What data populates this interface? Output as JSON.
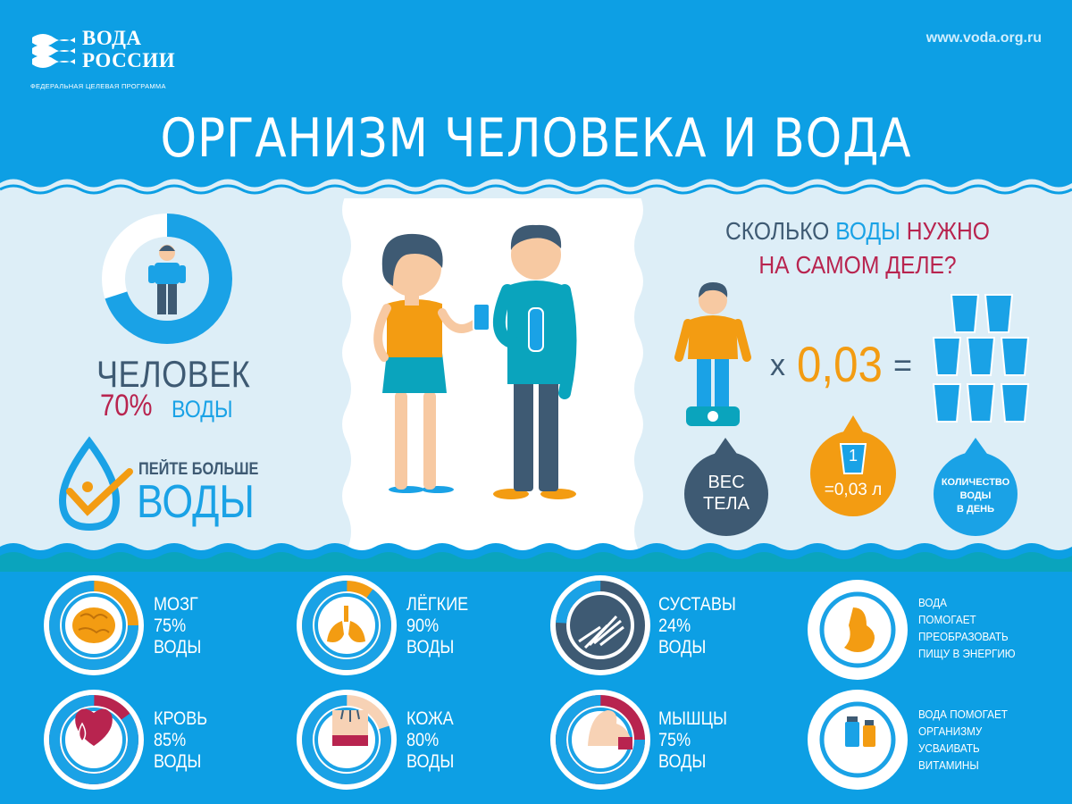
{
  "brand": {
    "name_line1": "ВОДА",
    "name_line2": "РОССИИ",
    "subtitle": "ФЕДЕРАЛЬНАЯ ЦЕЛЕВАЯ ПРОГРАММА",
    "url": "www.voda.org.ru"
  },
  "title": "ОРГАНИЗМ ЧЕЛОВЕКА И ВОДА",
  "human": {
    "label": "ЧЕЛОВЕК",
    "percent": "70%",
    "percent_word": "ВОДЫ",
    "water_fraction": 0.7
  },
  "drink_more": {
    "line1": "ПЕЙТЕ БОЛЬШЕ",
    "line2": "ВОДЫ"
  },
  "calculation": {
    "question_part1": "СКОЛЬКО",
    "question_part2": "ВОДЫ",
    "question_part3": "НУЖНО",
    "question_line2": "НА САМОМ ДЕЛЕ?",
    "multiply": "x",
    "coefficient": "0,03",
    "equals": "=",
    "weight_bubble_line1": "ВЕС",
    "weight_bubble_line2": "ТЕЛА",
    "glass_number": "1",
    "glass_bubble": "=0,03 л",
    "amount_bubble_line1": "КОЛИЧЕСТВО",
    "amount_bubble_line2": "ВОДЫ",
    "amount_bubble_line3": "В ДЕНЬ"
  },
  "organs": [
    {
      "name": "МОЗГ",
      "percent": "75%",
      "word": "ВОДЫ",
      "value": 0.75,
      "accent": "#f39c12"
    },
    {
      "name": "ЛЁГКИЕ",
      "percent": "90%",
      "word": "ВОДЫ",
      "value": 0.9,
      "accent": "#f39c12"
    },
    {
      "name": "СУСТАВЫ",
      "percent": "24%",
      "word": "ВОДЫ",
      "value": 0.24,
      "accent": "#3e5a73"
    },
    {
      "name": "КРОВЬ",
      "percent": "85%",
      "word": "ВОДЫ",
      "value": 0.85,
      "accent": "#b8244f"
    },
    {
      "name": "КОЖА",
      "percent": "80%",
      "word": "ВОДЫ",
      "value": 0.8,
      "accent": "#f7d2b5"
    },
    {
      "name": "МЫШЦЫ",
      "percent": "75%",
      "word": "ВОДЫ",
      "value": 0.75,
      "accent": "#b8244f"
    }
  ],
  "facts": [
    {
      "line1": "ВОДА",
      "line2": "ПОМОГАЕТ",
      "line3": "ПРЕОБРАЗОВАТЬ",
      "line4": "ПИЩУ В ЭНЕРГИЮ"
    },
    {
      "line1": "ВОДА ПОМОГАЕТ",
      "line2": "ОРГАНИЗМУ",
      "line3": "УСВАИВАТЬ",
      "line4": "ВИТАМИНЫ"
    }
  ],
  "colors": {
    "header_blue": "#0d9fe4",
    "teal": "#0aa4bd",
    "dark": "#3e5a73",
    "red": "#b8244f",
    "orange": "#f39c12",
    "light_blue": "#1aa2e6"
  }
}
